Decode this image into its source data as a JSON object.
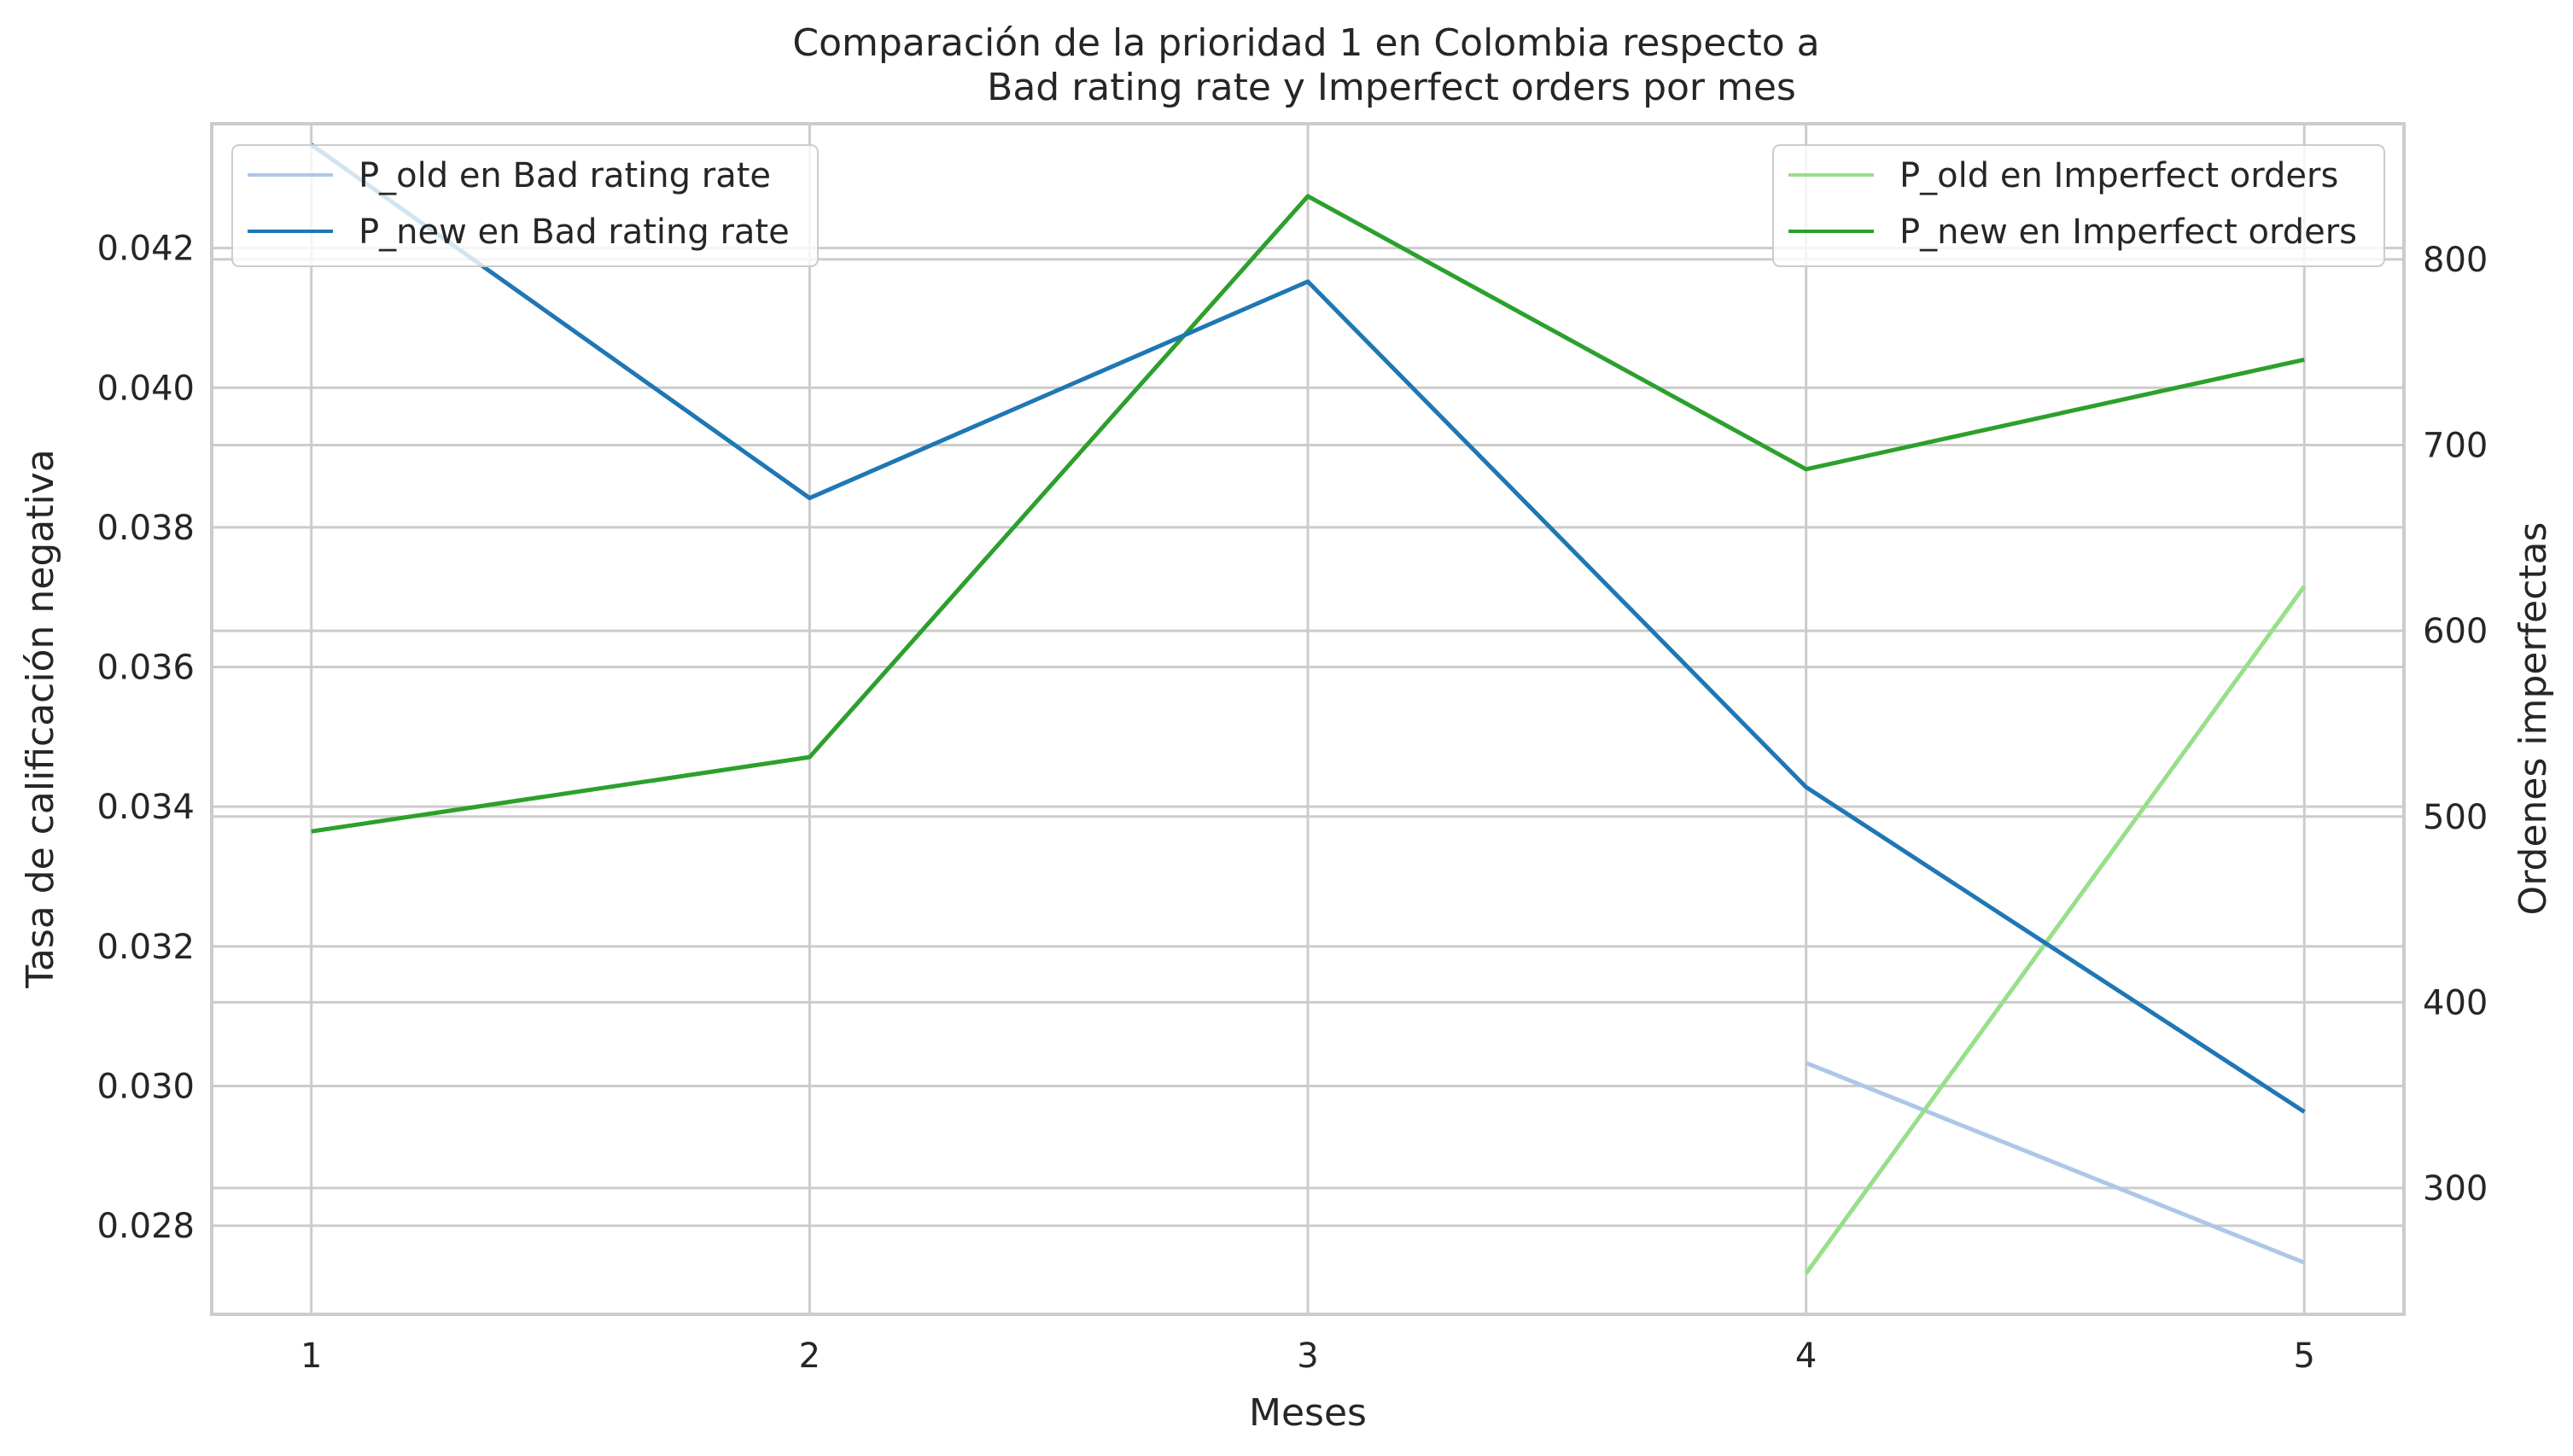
{
  "chart_data": {
    "type": "line",
    "title_lines": [
      "Comparación de la prioridad 1 en Colombia respecto a",
      "Bad rating rate y Imperfect orders por mes"
    ],
    "xlabel": "Meses",
    "ylabel_left": "Tasa de calificación negativa",
    "ylabel_right": "Ordenes imperfectas",
    "x": [
      1,
      2,
      3,
      4,
      5
    ],
    "xlim": [
      0.8,
      5.2
    ],
    "ylim_left": [
      0.02673,
      0.04378
    ],
    "ylim_right": [
      232,
      873
    ],
    "left_ticks": [
      0.028,
      0.03,
      0.032,
      0.034,
      0.036,
      0.038,
      0.04,
      0.042
    ],
    "left_tick_labels": [
      "0.028",
      "0.030",
      "0.032",
      "0.034",
      "0.036",
      "0.038",
      "0.040",
      "0.042"
    ],
    "right_ticks": [
      300,
      400,
      500,
      600,
      700,
      800
    ],
    "right_tick_labels": [
      "300",
      "400",
      "500",
      "600",
      "700",
      "800"
    ],
    "grid": true,
    "series_left": [
      {
        "name": "P_old en Bad rating rate",
        "color": "#aec7e8",
        "x": [
          4,
          5
        ],
        "values": [
          0.03033,
          0.02747
        ]
      },
      {
        "name": "P_new en Bad rating rate",
        "color": "#1f77b4",
        "x": [
          1,
          2,
          3,
          4,
          5
        ],
        "values": [
          0.04348,
          0.03842,
          0.04152,
          0.03428,
          0.02963
        ]
      }
    ],
    "series_right": [
      {
        "name": "P_old en Imperfect orders",
        "color": "#98df8a",
        "x": [
          4,
          5
        ],
        "values": [
          254,
          624
        ]
      },
      {
        "name": "P_new en Imperfect orders",
        "color": "#2ca02c",
        "x": [
          1,
          2,
          3,
          4,
          5
        ],
        "values": [
          492,
          532,
          834,
          687,
          746
        ]
      }
    ],
    "legend_left_placement": "top-left",
    "legend_right_placement": "top-right"
  }
}
